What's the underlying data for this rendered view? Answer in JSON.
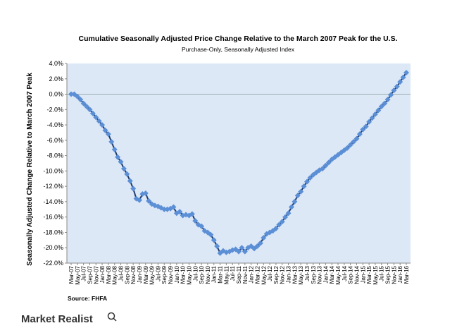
{
  "chart_data": {
    "type": "line",
    "title": "Cumulative Seasonally Adjusted Price Change Relative to the March 2007 Peak for the U.S.",
    "subtitle": "Purchase-Only, Seasonally Adjusted Index",
    "y_label": "Seasonally Adjusted Change Relative to March 2007 Peak",
    "source": "Source: FHFA",
    "categories": [
      "Mar-07",
      null,
      "May-07",
      null,
      "Jul-07",
      null,
      "Sep-07",
      null,
      "Nov-07",
      null,
      "Jan-08",
      null,
      "Mar-08",
      null,
      "May-08",
      null,
      "Jul-08",
      null,
      "Sep-08",
      null,
      "Nov-08",
      null,
      "Jan-09",
      null,
      "Mar-09",
      null,
      "May-09",
      null,
      "Jul-09",
      null,
      "Sep-09",
      null,
      "Nov-09",
      null,
      "Jan-10",
      null,
      "Mar-10",
      null,
      "May-10",
      null,
      "Jul-10",
      null,
      "Sep-10",
      null,
      "Nov-10",
      null,
      "Jan-11",
      null,
      "Mar-11",
      null,
      "May-11",
      null,
      "Jul-11",
      null,
      "Sep-11",
      null,
      "Nov-11",
      null,
      "Jan-12",
      null,
      "Mar-12",
      null,
      "May-12",
      null,
      "Jul-12",
      null,
      "Sep-12",
      null,
      "Nov-12",
      null,
      "Jan-13",
      null,
      "Mar-13",
      null,
      "May-13",
      null,
      "Jul-13",
      null,
      "Sep-13",
      null,
      "Nov-13",
      null,
      "Jan-14",
      null,
      "Mar-14",
      null,
      "May-14",
      null,
      "Jul-14",
      null,
      "Sep-14",
      null,
      "Nov-14",
      null,
      "Jan-15",
      null,
      "Mar-15",
      null,
      "May-15",
      null,
      "Jul-15",
      null,
      "Sep-15",
      null,
      "Nov-15",
      null,
      "Jan-16",
      null,
      "Mar-16"
    ],
    "values": [
      0,
      0,
      -0.3,
      -0.7,
      -1.2,
      -1.6,
      -2.0,
      -2.5,
      -3.0,
      -3.5,
      -4.0,
      -4.7,
      -5.2,
      -6.2,
      -7.2,
      -8.2,
      -8.8,
      -9.7,
      -10.4,
      -11.3,
      -12.3,
      -13.6,
      -13.8,
      -13.0,
      -12.9,
      -13.9,
      -14.3,
      -14.5,
      -14.6,
      -14.8,
      -15.0,
      -15.0,
      -14.9,
      -14.7,
      -15.5,
      -15.3,
      -15.8,
      -15.7,
      -15.8,
      -15.6,
      -16.5,
      -17.0,
      -17.2,
      -17.8,
      -18.0,
      -18.3,
      -19.0,
      -19.8,
      -20.7,
      -20.4,
      -20.6,
      -20.5,
      -20.3,
      -20.2,
      -20.5,
      -20.0,
      -20.5,
      -20.0,
      -19.8,
      -20.1,
      -19.8,
      -19.4,
      -18.7,
      -18.2,
      -18.0,
      -17.8,
      -17.5,
      -17.0,
      -16.6,
      -16.0,
      -15.5,
      -14.7,
      -14.0,
      -13.2,
      -12.7,
      -12.0,
      -11.4,
      -10.9,
      -10.5,
      -10.2,
      -9.9,
      -9.7,
      -9.3,
      -8.9,
      -8.5,
      -8.2,
      -7.9,
      -7.6,
      -7.3,
      -7.0,
      -6.6,
      -6.2,
      -5.8,
      -5.2,
      -4.6,
      -4.2,
      -3.6,
      -3.1,
      -2.6,
      -2.1,
      -1.6,
      -1.2,
      -0.7,
      -0.1,
      0.5,
      1.0,
      1.6,
      2.2,
      2.8
    ],
    "color": "#5b8fd6",
    "line_color": "#1f3b6b",
    "plot_background": "#dde8f7",
    "ylim": [
      -22,
      4
    ],
    "yticks": [
      {
        "value": 4,
        "label": "4.0%"
      },
      {
        "value": 2,
        "label": "2.0%"
      },
      {
        "value": 0,
        "label": "0.0%"
      },
      {
        "value": -2,
        "label": "-2.0%"
      },
      {
        "value": -4,
        "label": "-4.0%"
      },
      {
        "value": -6,
        "label": "-6.0%"
      },
      {
        "value": -8,
        "label": "-8.0%"
      },
      {
        "value": -10,
        "label": "-10.0%"
      },
      {
        "value": -12,
        "label": "-12.0%"
      },
      {
        "value": -14,
        "label": "-14.0%"
      },
      {
        "value": -16,
        "label": "-16.0%"
      },
      {
        "value": -18,
        "label": "-18.0%"
      },
      {
        "value": -20,
        "label": "-20.0%"
      },
      {
        "value": -22,
        "label": "-22.0%"
      }
    ]
  },
  "branding": "Market Realist"
}
